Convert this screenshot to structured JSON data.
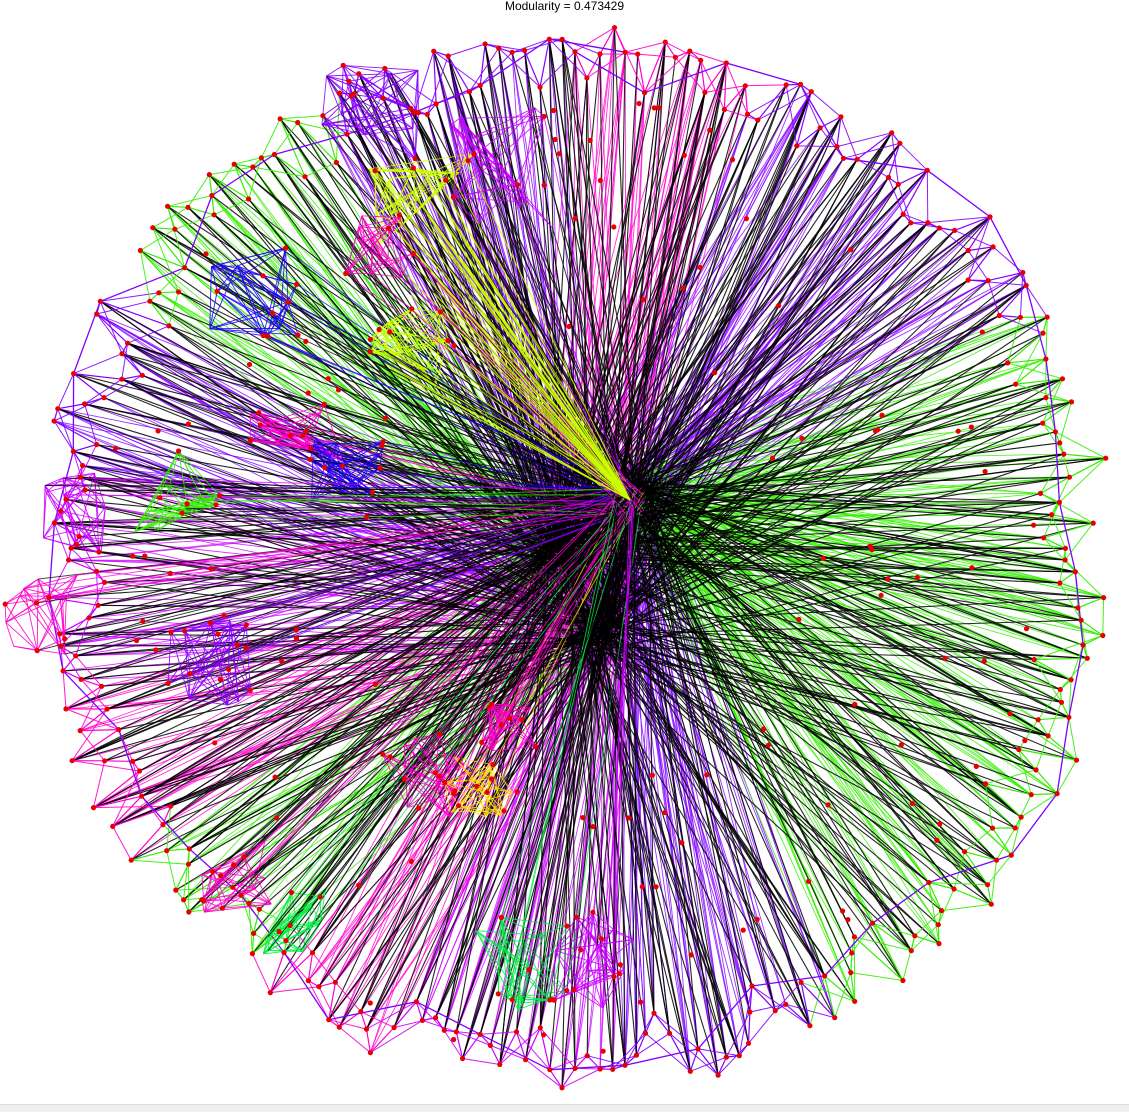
{
  "title": "Modularity = 0.473429",
  "graph": {
    "hub_color": "#000000",
    "node_color": "#e60000",
    "community_colors": [
      "#33ee00",
      "#cc00ff",
      "#ff00cc",
      "#7f00ff",
      "#2200ff",
      "#ccff00",
      "#ffdd00",
      "#00ee44",
      "#8800ff"
    ],
    "hubs": [
      {
        "community_color": "#000000"
      }
    ]
  }
}
